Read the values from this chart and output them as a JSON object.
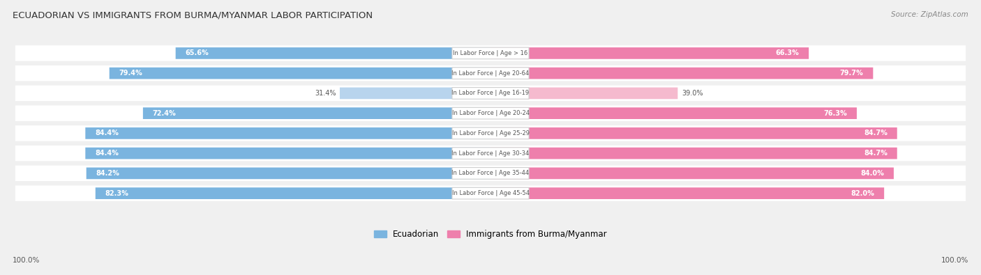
{
  "title": "ECUADORIAN VS IMMIGRANTS FROM BURMA/MYANMAR LABOR PARTICIPATION",
  "source": "Source: ZipAtlas.com",
  "categories": [
    "In Labor Force | Age > 16",
    "In Labor Force | Age 20-64",
    "In Labor Force | Age 16-19",
    "In Labor Force | Age 20-24",
    "In Labor Force | Age 25-29",
    "In Labor Force | Age 30-34",
    "In Labor Force | Age 35-44",
    "In Labor Force | Age 45-54"
  ],
  "ecuadorian": [
    65.6,
    79.4,
    31.4,
    72.4,
    84.4,
    84.4,
    84.2,
    82.3
  ],
  "immigrants": [
    66.3,
    79.7,
    39.0,
    76.3,
    84.7,
    84.7,
    84.0,
    82.0
  ],
  "ecuadorian_color": "#7AB4DF",
  "ecuadorian_color_light": "#B8D4ED",
  "immigrants_color": "#EE7FAC",
  "immigrants_color_light": "#F5BACE",
  "label_color_dark": "#555555",
  "background_color": "#f0f0f0",
  "row_bg_color": "#e8e8e8",
  "center_label_bg": "#ffffff",
  "max_value": 100.0,
  "legend_ecuadorian": "Ecuadorian",
  "legend_immigrants": "Immigrants from Burma/Myanmar",
  "bottom_left_label": "100.0%",
  "bottom_right_label": "100.0%",
  "light_threshold": 50.0
}
